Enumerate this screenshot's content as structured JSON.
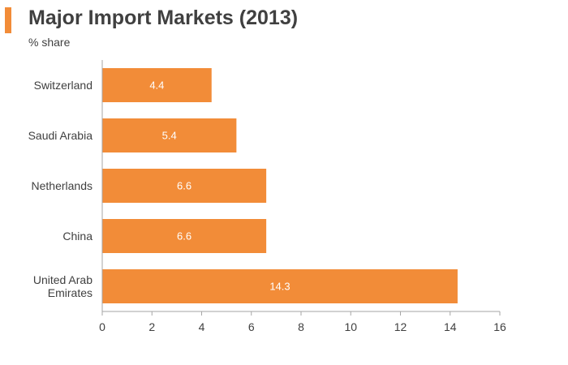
{
  "header": {
    "title": "Major Import Markets (2013)",
    "subtitle": "% share"
  },
  "colors": {
    "accent": "#f28c38",
    "bar": "#f28c38",
    "axis": "#a6a6a6",
    "text": "#404040",
    "data_label": "#ffffff"
  },
  "chart_data": {
    "type": "bar",
    "orientation": "horizontal",
    "title": "Major Import Markets (2013)",
    "subtitle": "% share",
    "categories": [
      "Switzerland",
      "Saudi Arabia",
      "Netherlands",
      "China",
      "United Arab Emirates"
    ],
    "category_label_lines": [
      [
        "Switzerland"
      ],
      [
        "Saudi Arabia"
      ],
      [
        "Netherlands"
      ],
      [
        "China"
      ],
      [
        "United Arab",
        "Emirates"
      ]
    ],
    "values": [
      4.4,
      5.4,
      6.6,
      6.6,
      14.3
    ],
    "data_labels": [
      "4.4",
      "5.4",
      "6.6",
      "6.6",
      "14.3"
    ],
    "xlim": [
      0,
      16
    ],
    "xticks": [
      0,
      2,
      4,
      6,
      8,
      10,
      12,
      14,
      16
    ],
    "xlabel": "",
    "ylabel": "",
    "grid": false,
    "legend": "none"
  }
}
